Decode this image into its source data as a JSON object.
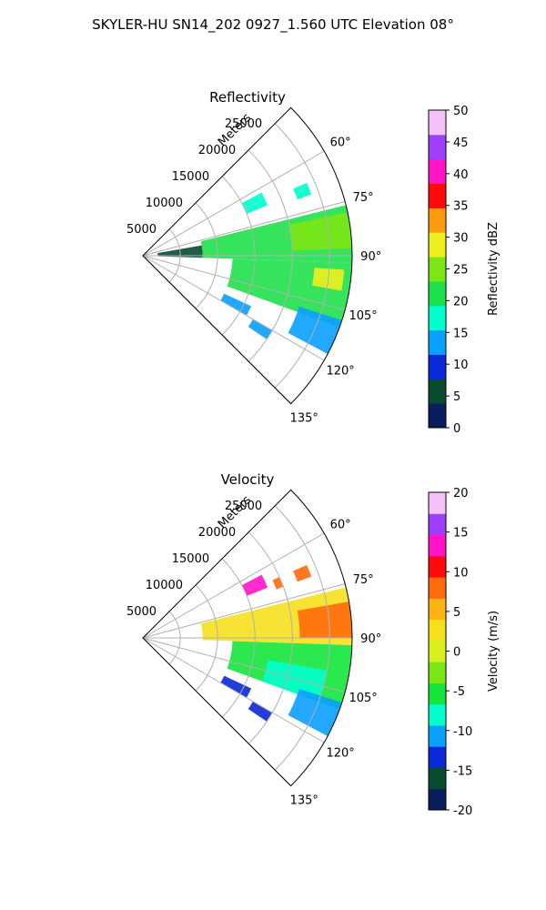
{
  "title": "SKYLER-HU  SN14_202  0927_1.560 UTC Elevation 08°",
  "chart_data": [
    {
      "type": "polar-sector",
      "title": "Reflectivity",
      "range_label": "Meters",
      "range_ticks": [
        "5000",
        "10000",
        "15000",
        "20000",
        "25000"
      ],
      "range_tick_values": [
        5000,
        10000,
        15000,
        20000,
        25000
      ],
      "rmax": 28000,
      "azimuth_ticks": [
        "60°",
        "75°",
        "90°",
        "105°",
        "120°",
        "135°"
      ],
      "azimuth_tick_values": [
        60,
        75,
        90,
        105,
        120,
        135
      ],
      "azimuth_range": [
        45,
        135
      ],
      "colorbar": {
        "label": "Reflectivity dBZ",
        "min": 0,
        "max": 50,
        "ticks": [
          "0",
          "5",
          "10",
          "15",
          "20",
          "25",
          "30",
          "35",
          "40",
          "45",
          "50"
        ],
        "tick_values": [
          0,
          5,
          10,
          15,
          20,
          25,
          30,
          35,
          40,
          45,
          50
        ],
        "colors": [
          "#0a1d5c",
          "#0a4a30",
          "#0a28d6",
          "#0aa0ff",
          "#00ffcc",
          "#1fe04a",
          "#7be614",
          "#eef01e",
          "#ff9a10",
          "#ff0a0a",
          "#ff14c8",
          "#a040ff",
          "#f4c2f8"
        ]
      },
      "echoes": [
        {
          "az": [
            76,
            92
          ],
          "r": [
            8000,
            28000
          ],
          "value": 20
        },
        {
          "az": [
            78,
            88
          ],
          "r": [
            20000,
            28000
          ],
          "value": 25
        },
        {
          "az": [
            92,
            110
          ],
          "r": [
            12000,
            28000
          ],
          "value": 20
        },
        {
          "az": [
            94,
            100
          ],
          "r": [
            23000,
            27000
          ],
          "value": 30
        },
        {
          "az": [
            108,
            118
          ],
          "r": [
            22000,
            28000
          ],
          "value": 15
        },
        {
          "az": [
            62,
            68
          ],
          "r": [
            15000,
            18000
          ],
          "value": 17
        },
        {
          "az": [
            66,
            70
          ],
          "r": [
            22000,
            24000
          ],
          "value": 18
        },
        {
          "az": [
            80,
            92
          ],
          "r": [
            2000,
            8000
          ],
          "value": 5
        },
        {
          "az": [
            115,
            120
          ],
          "r": [
            12000,
            16000
          ],
          "value": 14
        },
        {
          "az": [
            120,
            124
          ],
          "r": [
            17000,
            20000
          ],
          "value": 15
        }
      ]
    },
    {
      "type": "polar-sector",
      "title": "Velocity",
      "range_label": "Meters",
      "range_ticks": [
        "5000",
        "10000",
        "15000",
        "20000",
        "25000"
      ],
      "range_tick_values": [
        5000,
        10000,
        15000,
        20000,
        25000
      ],
      "rmax": 28000,
      "azimuth_ticks": [
        "60°",
        "75°",
        "90°",
        "105°",
        "120°",
        "135°"
      ],
      "azimuth_tick_values": [
        60,
        75,
        90,
        105,
        120,
        135
      ],
      "azimuth_range": [
        45,
        135
      ],
      "colorbar": {
        "label": "Velocity (m/s)",
        "min": -20,
        "max": 20,
        "ticks": [
          "-20",
          "-15",
          "-10",
          "-5",
          "0",
          "5",
          "10",
          "15",
          "20"
        ],
        "tick_values": [
          -20,
          -15,
          -10,
          -5,
          0,
          5,
          10,
          15,
          20
        ],
        "colors": [
          "#0a1d5c",
          "#0a4a30",
          "#0a28d6",
          "#0aa0ff",
          "#00ffcc",
          "#14e63c",
          "#7be614",
          "#d8f01e",
          "#f6e01e",
          "#ffb414",
          "#ff6a0a",
          "#ff0a0a",
          "#ff14c8",
          "#a040ff",
          "#f4c2f8"
        ]
      },
      "echoes": [
        {
          "az": [
            76,
            92
          ],
          "r": [
            8000,
            28000
          ],
          "value": 2
        },
        {
          "az": [
            80,
            90
          ],
          "r": [
            21000,
            28000
          ],
          "value": 7
        },
        {
          "az": [
            92,
            110
          ],
          "r": [
            12000,
            28000
          ],
          "value": -5
        },
        {
          "az": [
            100,
            110
          ],
          "r": [
            17000,
            25000
          ],
          "value": -8
        },
        {
          "az": [
            108,
            118
          ],
          "r": [
            22000,
            28000
          ],
          "value": -10
        },
        {
          "az": [
            62,
            68
          ],
          "r": [
            15000,
            18000
          ],
          "value": 14
        },
        {
          "az": [
            66,
            70
          ],
          "r": [
            19000,
            20000
          ],
          "value": 9
        },
        {
          "az": [
            66,
            70
          ],
          "r": [
            22000,
            24000
          ],
          "value": 9
        },
        {
          "az": [
            115,
            120
          ],
          "r": [
            12000,
            16000
          ],
          "value": -14
        },
        {
          "az": [
            120,
            124
          ],
          "r": [
            17000,
            20000
          ],
          "value": -13
        }
      ]
    }
  ]
}
